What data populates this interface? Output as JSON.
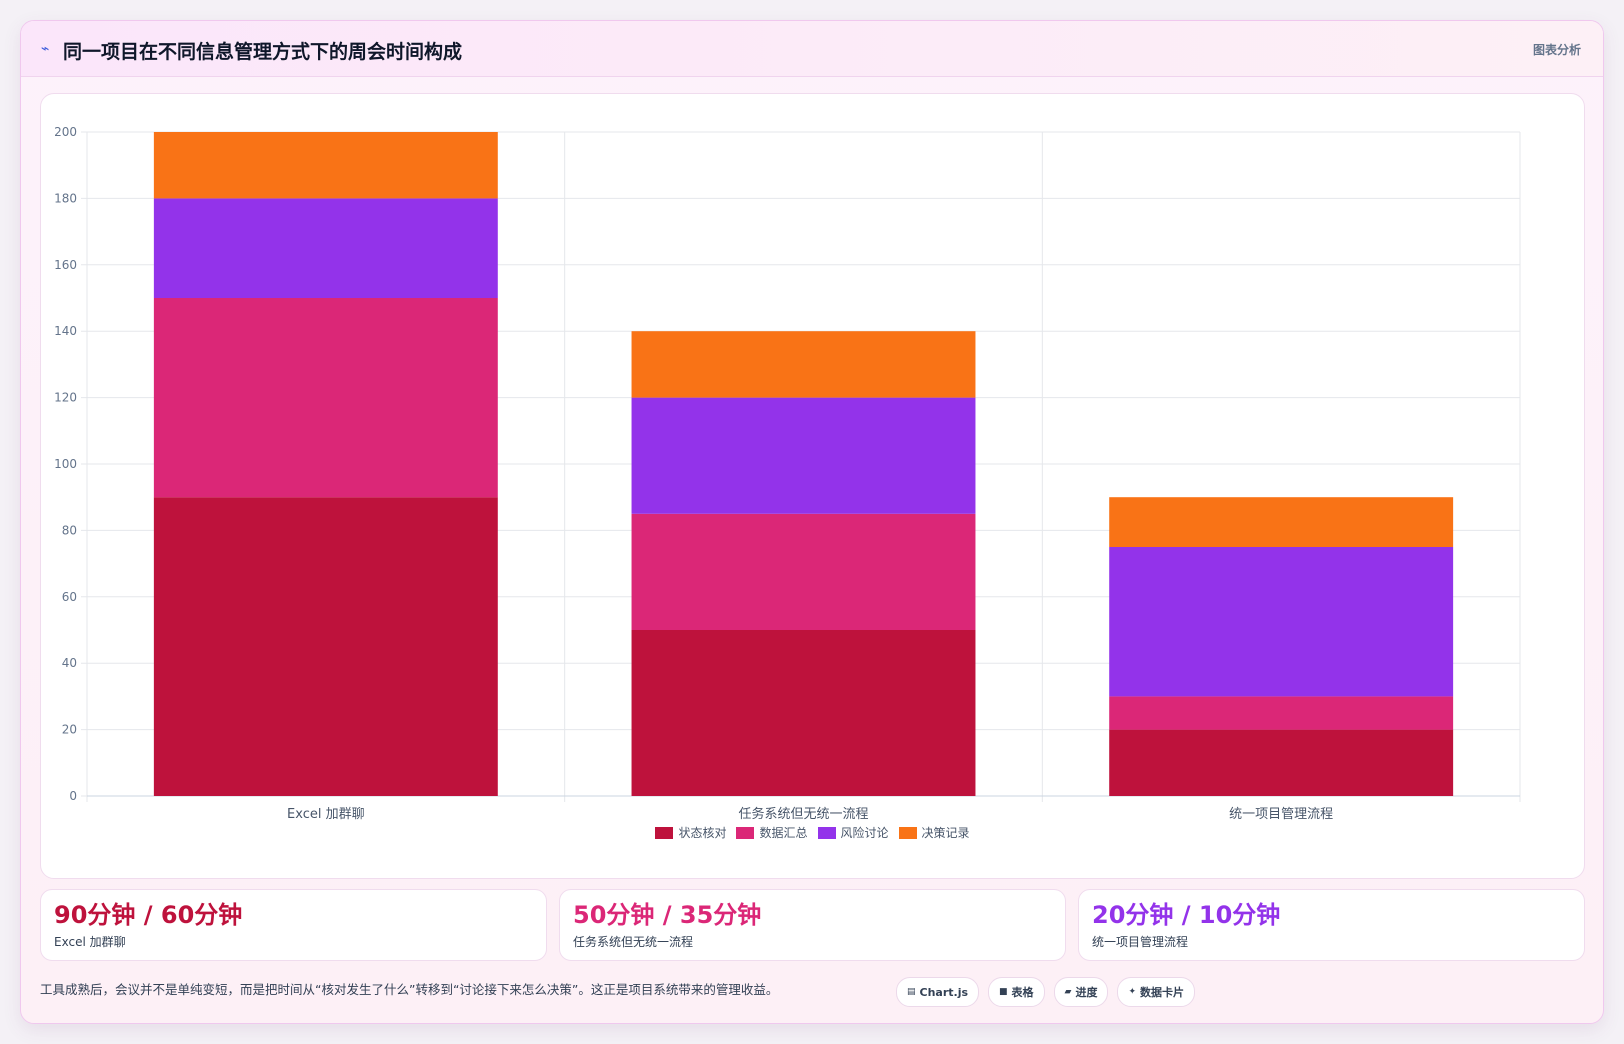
{
  "header": {
    "icon": "trend-line-icon",
    "title": "同一项目在不同信息管理方式下的周会时间构成",
    "tag": "图表分析"
  },
  "chart_data": {
    "type": "bar",
    "stacked": true,
    "categories": [
      "Excel 加群聊",
      "任务系统但无统一流程",
      "统一项目管理流程"
    ],
    "series": [
      {
        "name": "状态核对",
        "color": "#be123c",
        "values": [
          90,
          50,
          20
        ]
      },
      {
        "name": "数据汇总",
        "color": "#db2777",
        "values": [
          60,
          35,
          10
        ]
      },
      {
        "name": "风险讨论",
        "color": "#9333ea",
        "values": [
          30,
          35,
          45
        ]
      },
      {
        "name": "决策记录",
        "color": "#f97316",
        "values": [
          20,
          20,
          15
        ]
      }
    ],
    "ylim": [
      0,
      200
    ],
    "yticks": [
      0,
      20,
      40,
      60,
      80,
      100,
      120,
      140,
      160,
      180,
      200
    ],
    "grid": true,
    "legend": "bottom"
  },
  "stats": [
    {
      "value": "90分钟 / 60分钟",
      "label": "Excel 加群聊",
      "color": "#be123c"
    },
    {
      "value": "50分钟 / 35分钟",
      "label": "任务系统但无统一流程",
      "color": "#db2777"
    },
    {
      "value": "20分钟 / 10分钟",
      "label": "统一项目管理流程",
      "color": "#9333ea"
    }
  ],
  "footer": {
    "note": "工具成熟后，会议并不是单纯变短，而是把时间从“核对发生了什么”转移到“讨论接下来怎么决策”。这正是项目系统带来的管理收益。"
  },
  "pills": [
    {
      "icon": "chart-icon",
      "glyph": "▤",
      "label": "Chart.js"
    },
    {
      "icon": "table-icon",
      "glyph": "■",
      "label": "表格"
    },
    {
      "icon": "progress-icon",
      "glyph": "▰",
      "label": "进度"
    },
    {
      "icon": "data-card-icon",
      "glyph": "✦",
      "label": "数据卡片"
    }
  ]
}
